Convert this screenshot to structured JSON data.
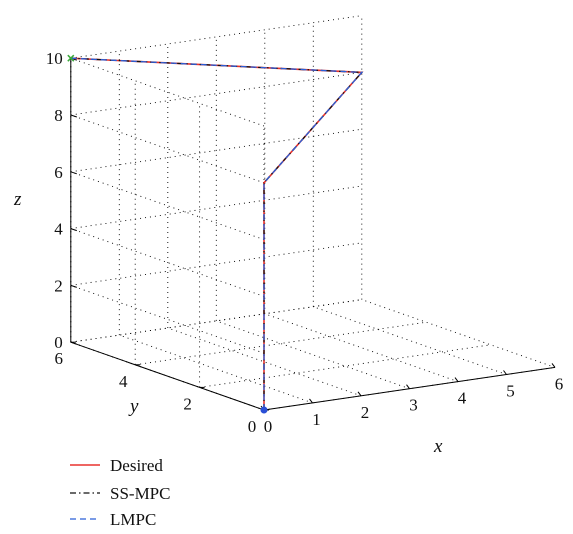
{
  "chart_data": {
    "type": "line",
    "projection": "3d",
    "title": "",
    "xlabel": "x",
    "ylabel": "y",
    "zlabel": "z",
    "xlim": [
      0,
      6
    ],
    "ylim": [
      0,
      6
    ],
    "zlim": [
      0,
      10
    ],
    "xticks": [
      "0",
      "1",
      "2",
      "3",
      "4",
      "5",
      "6"
    ],
    "yticks": [
      "0",
      "2",
      "4",
      "6"
    ],
    "zticks": [
      "0",
      "2",
      "4",
      "6",
      "8",
      "10"
    ],
    "grid": true,
    "legend_position": "bottom-left",
    "start_marker_color": "#2a4fd6",
    "end_marker_color": "#3aa83a",
    "series": [
      {
        "name": "Desired",
        "color": "#e8322e",
        "dash": "solid",
        "points": [
          [
            0,
            0,
            0
          ],
          [
            0,
            0,
            8
          ],
          [
            6,
            6,
            8
          ],
          [
            0,
            6,
            10
          ]
        ]
      },
      {
        "name": "SS-MPC",
        "color": "#111111",
        "dash": "dashdot",
        "points": [
          [
            0,
            0,
            0
          ],
          [
            0,
            0,
            8
          ],
          [
            6,
            6,
            8
          ],
          [
            0,
            6,
            10
          ]
        ]
      },
      {
        "name": "LMPC",
        "color": "#2a5fd8",
        "dash": "dashed",
        "points": [
          [
            0,
            0,
            0
          ],
          [
            0,
            0,
            8
          ],
          [
            6,
            6,
            8
          ],
          [
            0,
            6,
            10
          ]
        ]
      }
    ]
  }
}
